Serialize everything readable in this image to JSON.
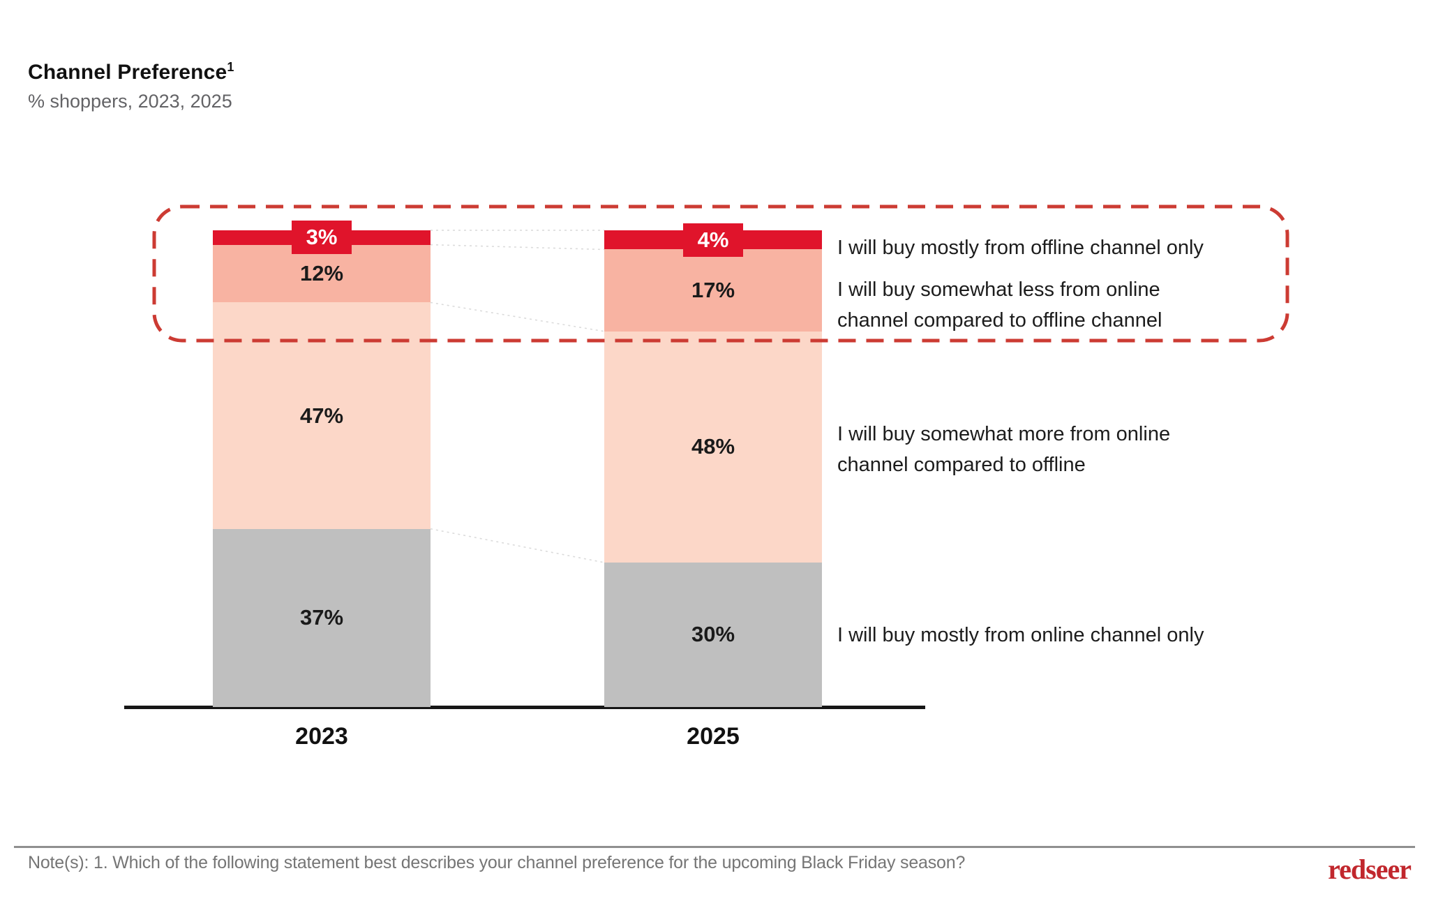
{
  "header": {
    "title": "Channel Preference",
    "title_superscript": "1",
    "subtitle": "% shoppers, 2023, 2025"
  },
  "chart_data": {
    "type": "bar",
    "stacked": true,
    "orientation": "vertical",
    "unit": "%",
    "categories": [
      "2023",
      "2025"
    ],
    "segments_order": "top-to-bottom",
    "segments": [
      {
        "label": "I will buy mostly from offline channel only",
        "color": "#E0142B",
        "values": [
          3,
          4
        ],
        "value_label_style": "badge",
        "value_label_color": "#FFFFFF"
      },
      {
        "label": "I will buy somewhat less from online channel compared to offline channel",
        "color": "#F8B3A2",
        "values": [
          12,
          17
        ]
      },
      {
        "label": "I will buy somewhat more from online channel compared to offline",
        "color": "#FCD7C8",
        "values": [
          47,
          48
        ]
      },
      {
        "label": "I will buy mostly from online channel only",
        "color": "#BFBFBF",
        "values": [
          37,
          30
        ]
      }
    ],
    "value_format": "{v}%",
    "highlight_box": {
      "style": "dashed-rounded-rectangle",
      "color": "#CC3B33",
      "encloses_segments": [
        0,
        1
      ]
    },
    "connector_color": "#DBDBDB",
    "axis_color": "#161616",
    "legend_position": "right"
  },
  "footnote": "Note(s): 1. Which of the following statement best describes your channel preference for the upcoming Black Friday season?",
  "logo_text": "redseer",
  "logo_color": "#C1272D"
}
